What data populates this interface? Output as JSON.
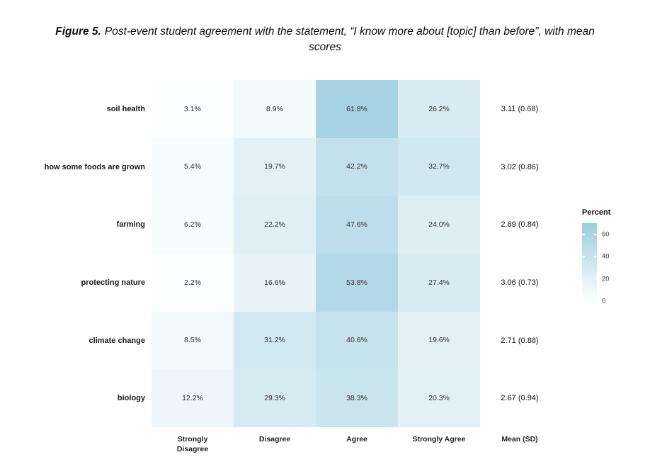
{
  "title": {
    "figure_label": "Figure 5.",
    "text": "Post-event student agreement with the statement, “I know more about [topic] than before”, with mean scores"
  },
  "chart_data": {
    "type": "heatmap",
    "title": "Figure 5. Post-event student agreement with the statement, “I know more about [topic] than before”, with mean scores",
    "xlabel": "",
    "ylabel": "",
    "columns": [
      "Strongly\nDisagree",
      "Disagree",
      "Agree",
      "Strongly Agree"
    ],
    "mean_column_label": "Mean (SD)",
    "value_suffix": "%",
    "rows": [
      {
        "label": "soil health",
        "values": [
          3.1,
          8.9,
          61.8,
          26.2
        ],
        "mean_sd": "3.11 (0.68)"
      },
      {
        "label": "how some foods are grown",
        "values": [
          5.4,
          19.7,
          42.2,
          32.7
        ],
        "mean_sd": "3.02 (0.86)"
      },
      {
        "label": "farming",
        "values": [
          6.2,
          22.2,
          47.6,
          24.0
        ],
        "mean_sd": "2.89 (0.84)"
      },
      {
        "label": "protecting nature",
        "values": [
          2.2,
          16.6,
          53.8,
          27.4
        ],
        "mean_sd": "3.06 (0.73)"
      },
      {
        "label": "climate change",
        "values": [
          8.5,
          31.2,
          40.6,
          19.6
        ],
        "mean_sd": "2.71 (0.88)"
      },
      {
        "label": "biology",
        "values": [
          12.2,
          29.3,
          38.3,
          20.3
        ],
        "mean_sd": "2.67 (0.94)"
      }
    ],
    "legend": {
      "title": "Percent",
      "ticks": [
        60,
        40,
        20,
        0
      ],
      "min": 0,
      "max": 70,
      "position": "right"
    },
    "colors": {
      "low": "#ffffff",
      "high": "#9ccddf"
    },
    "grid": false
  }
}
